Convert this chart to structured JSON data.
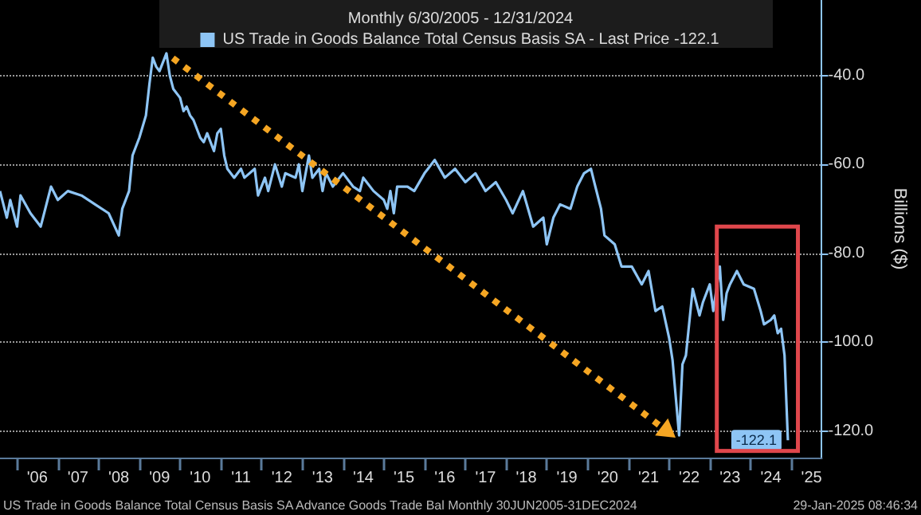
{
  "chart_data": {
    "type": "line",
    "title": "Monthly 6/30/2005 - 12/31/2024",
    "ylabel": "Billions ($)",
    "annotations": [
      "US Trade in Goods Balance Total Census Basis SA Advance Goods Trade Bal Monthly 30JUN2005-31DEC2024",
      "29-Jan-2025 08:46:34",
      {
        "text": "-122.1",
        "x": "2024-12",
        "y": -122.1
      }
    ],
    "x": [
      "2005-08",
      "2005-10",
      "2005-11",
      "2006-01",
      "2006-02",
      "2006-05",
      "2006-08",
      "2006-11",
      "2007-01",
      "2007-04",
      "2007-08",
      "2007-12",
      "2008-04",
      "2008-07",
      "2008-08",
      "2008-10",
      "2008-11",
      "2009-01",
      "2009-03",
      "2009-04",
      "2009-05",
      "2009-06",
      "2009-07",
      "2009-09",
      "2009-10",
      "2009-11",
      "2010-01",
      "2010-02",
      "2010-03",
      "2010-04",
      "2010-05",
      "2010-07",
      "2010-08",
      "2010-09",
      "2010-11",
      "2010-12",
      "2011-01",
      "2011-02",
      "2011-03",
      "2011-05",
      "2011-07",
      "2011-08",
      "2011-11",
      "2011-12",
      "2012-02",
      "2012-03",
      "2012-05",
      "2012-07",
      "2012-08",
      "2012-11",
      "2012-12",
      "2013-01",
      "2013-03",
      "2013-04",
      "2013-06",
      "2013-07",
      "2013-08",
      "2013-10",
      "2014-01",
      "2014-04",
      "2014-06",
      "2014-07",
      "2014-10",
      "2015-01",
      "2015-02",
      "2015-03",
      "2015-04",
      "2015-05",
      "2015-08",
      "2015-10",
      "2016-01",
      "2016-02",
      "2016-04",
      "2016-07",
      "2016-10",
      "2017-01",
      "2017-04",
      "2017-07",
      "2017-10",
      "2018-01",
      "2018-03",
      "2018-06",
      "2018-09",
      "2018-12",
      "2019-01",
      "2019-03",
      "2019-05",
      "2019-08",
      "2019-10",
      "2019-12",
      "2020-02",
      "2020-03",
      "2020-05",
      "2020-06",
      "2020-09",
      "2020-11",
      "2021-02",
      "2021-05",
      "2021-07",
      "2021-09",
      "2021-11",
      "2022-01",
      "2022-02",
      "2022-04",
      "2022-05",
      "2022-06",
      "2022-08",
      "2022-10",
      "2022-11",
      "2023-01",
      "2023-02",
      "2023-04",
      "2023-05",
      "2023-06",
      "2023-07",
      "2023-09",
      "2023-11",
      "2024-02",
      "2024-04",
      "2024-05",
      "2024-07",
      "2024-08",
      "2024-09",
      "2024-10",
      "2024-11",
      "2024-12"
    ],
    "series": [
      {
        "name": "US Trade in Goods Balance Total Census Basis SA - Last Price -122.1",
        "color": "#8ec5f5",
        "values": [
          -66,
          -72,
          -68,
          -74,
          -67,
          -71,
          -74,
          -65,
          -68,
          -66,
          -67,
          -69,
          -71,
          -76,
          -70,
          -66,
          -58,
          -54,
          -49,
          -42,
          -36,
          -38,
          -39,
          -35,
          -40,
          -43,
          -45,
          -48,
          -47,
          -49,
          -50,
          -54,
          -55,
          -53,
          -57,
          -53,
          -52,
          -58,
          -61,
          -63,
          -61,
          -63,
          -61,
          -67,
          -63,
          -66,
          -60,
          -65,
          -62,
          -63,
          -60,
          -66,
          -58,
          -63,
          -61,
          -66,
          -62,
          -65,
          -62,
          -65,
          -66,
          -63,
          -66,
          -68,
          -70,
          -66,
          -71,
          -65,
          -65,
          -66,
          -62,
          -61,
          -59,
          -63,
          -61,
          -64,
          -62,
          -66,
          -64,
          -68,
          -71,
          -66,
          -74,
          -72,
          -78,
          -72,
          -69,
          -70,
          -65,
          -62,
          -61,
          -64,
          -70,
          -76,
          -78,
          -83,
          -83,
          -87,
          -84,
          -93,
          -92,
          -99,
          -104,
          -121,
          -105,
          -103,
          -88,
          -94,
          -91,
          -87,
          -93,
          -83,
          -95,
          -89,
          -87,
          -84,
          -87,
          -88,
          -93,
          -96,
          -95,
          -94,
          -98,
          -97,
          -103,
          -122.1
        ]
      }
    ],
    "xlim": [
      "2005-08",
      "2025-10"
    ],
    "xticks": [
      {
        "value": "2006-01-01",
        "label": null
      },
      {
        "value": "2006-07-01",
        "label": "'06"
      },
      {
        "value": "2007-01-01",
        "label": null
      },
      {
        "value": "2007-07-01",
        "label": "'07"
      },
      {
        "value": "2008-01-01",
        "label": null
      },
      {
        "value": "2008-07-01",
        "label": "'08"
      },
      {
        "value": "2009-01-01",
        "label": null
      },
      {
        "value": "2009-07-01",
        "label": "'09"
      },
      {
        "value": "2010-01-01",
        "label": null
      },
      {
        "value": "2010-07-01",
        "label": "'10"
      },
      {
        "value": "2011-01-01",
        "label": null
      },
      {
        "value": "2011-07-01",
        "label": "'11"
      },
      {
        "value": "2012-01-01",
        "label": null
      },
      {
        "value": "2012-07-01",
        "label": "'12"
      },
      {
        "value": "2013-01-01",
        "label": null
      },
      {
        "value": "2013-07-01",
        "label": "'13"
      },
      {
        "value": "2014-01-01",
        "label": null
      },
      {
        "value": "2014-07-01",
        "label": "'14"
      },
      {
        "value": "2015-01-01",
        "label": null
      },
      {
        "value": "2015-07-01",
        "label": "'15"
      },
      {
        "value": "2016-01-01",
        "label": null
      },
      {
        "value": "2016-07-01",
        "label": "'16"
      },
      {
        "value": "2017-01-01",
        "label": null
      },
      {
        "value": "2017-07-01",
        "label": "'17"
      },
      {
        "value": "2018-01-01",
        "label": null
      },
      {
        "value": "2018-07-01",
        "label": "'18"
      },
      {
        "value": "2019-01-01",
        "label": null
      },
      {
        "value": "2019-07-01",
        "label": "'19"
      },
      {
        "value": "2020-01-01",
        "label": null
      },
      {
        "value": "2020-07-01",
        "label": "'20"
      },
      {
        "value": "2021-01-01",
        "label": null
      },
      {
        "value": "2021-07-01",
        "label": "'21"
      },
      {
        "value": "2022-01-01",
        "label": null
      },
      {
        "value": "2022-07-01",
        "label": "'22"
      },
      {
        "value": "2023-01-01",
        "label": null
      },
      {
        "value": "2023-07-01",
        "label": "'23"
      },
      {
        "value": "2024-01-01",
        "label": null
      },
      {
        "value": "2024-07-01",
        "label": "'24"
      },
      {
        "value": "2025-01-01",
        "label": null
      },
      {
        "value": "2025-07-01",
        "label": "'25"
      }
    ],
    "ylim": [
      -126,
      -23
    ],
    "yticks": [
      {
        "value": -40,
        "label": "-40.0"
      },
      {
        "value": -60,
        "label": "-60.0"
      },
      {
        "value": -80,
        "label": "-80.0"
      },
      {
        "value": -100,
        "label": "-100.0"
      },
      {
        "value": -120,
        "label": "-120.0"
      }
    ],
    "grid": "y",
    "legend": "top"
  }
}
